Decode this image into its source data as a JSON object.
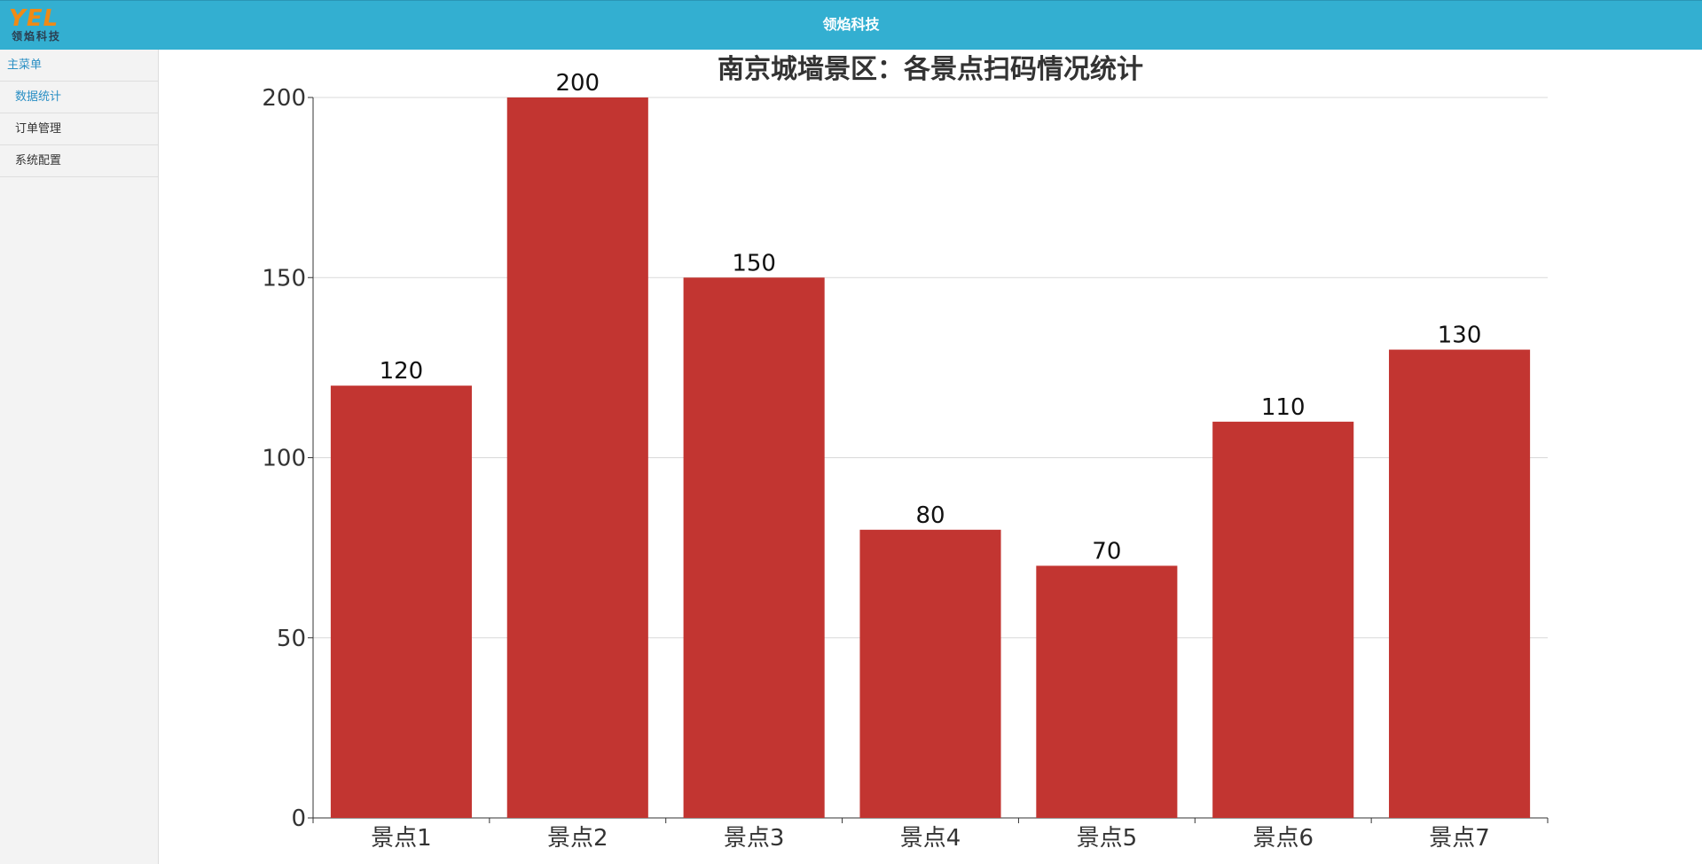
{
  "header": {
    "logo_mark": "YEL",
    "logo_text": "领焰科技",
    "title": "领焰科技"
  },
  "sidebar": {
    "items": [
      {
        "label": "主菜单"
      },
      {
        "label": "数据统计"
      },
      {
        "label": "订单管理"
      },
      {
        "label": "系统配置"
      }
    ]
  },
  "colors": {
    "header": "#33afd1",
    "bar": "#c23531",
    "logo": "#ef8a16"
  },
  "chart_data": {
    "type": "bar",
    "title": "南京城墙景区：各景点扫码情况统计",
    "categories": [
      "景点1",
      "景点2",
      "景点3",
      "景点4",
      "景点5",
      "景点6",
      "景点7"
    ],
    "values": [
      120,
      200,
      150,
      80,
      70,
      110,
      130
    ],
    "ylim": [
      0,
      200
    ],
    "yticks": [
      0,
      50,
      100,
      150,
      200
    ],
    "grid": true,
    "data_labels": true
  }
}
